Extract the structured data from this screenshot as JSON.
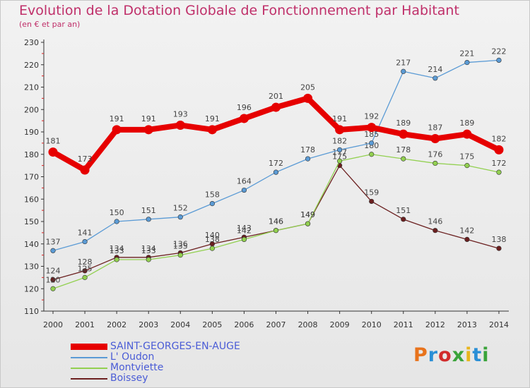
{
  "header": {
    "title": "Evolution de la Dotation Globale de Fonctionnement par Habitant",
    "subtitle": "(en € et par an)"
  },
  "logo": {
    "text": "Proxiti",
    "colors": [
      "#e8731c",
      "#2a8fd6",
      "#d12b2b",
      "#3aa33a",
      "#e8b51c",
      "#2a8fd6",
      "#3aa33a"
    ]
  },
  "chart_data": {
    "type": "line",
    "x": [
      2000,
      2001,
      2002,
      2003,
      2004,
      2005,
      2006,
      2007,
      2008,
      2009,
      2010,
      2011,
      2012,
      2013,
      2014
    ],
    "ylim": [
      110,
      230
    ],
    "yticks": [
      110,
      120,
      130,
      140,
      150,
      160,
      170,
      180,
      190,
      200,
      210,
      220,
      230
    ],
    "grid": false,
    "legend_position": "bottom-left",
    "series": [
      {
        "name": "SAINT-GEORGES-EN-AUGE",
        "color": "#e60000",
        "values": [
          181,
          173,
          191,
          191,
          193,
          191,
          196,
          201,
          205,
          191,
          192,
          189,
          187,
          189,
          182
        ]
      },
      {
        "name": "L' Oudon",
        "color": "#5b9bd5",
        "values": [
          137,
          141,
          150,
          151,
          152,
          158,
          164,
          172,
          178,
          182,
          185,
          217,
          214,
          221,
          222
        ]
      },
      {
        "name": "Montviette",
        "color": "#92d050",
        "values": [
          120,
          125,
          133,
          133,
          135,
          138,
          142,
          146,
          149,
          177,
          180,
          178,
          176,
          175,
          172
        ]
      },
      {
        "name": "Boissey",
        "color": "#6b1f1f",
        "values": [
          124,
          128,
          134,
          134,
          136,
          140,
          143,
          146,
          149,
          175,
          159,
          151,
          146,
          142,
          138
        ]
      }
    ]
  }
}
